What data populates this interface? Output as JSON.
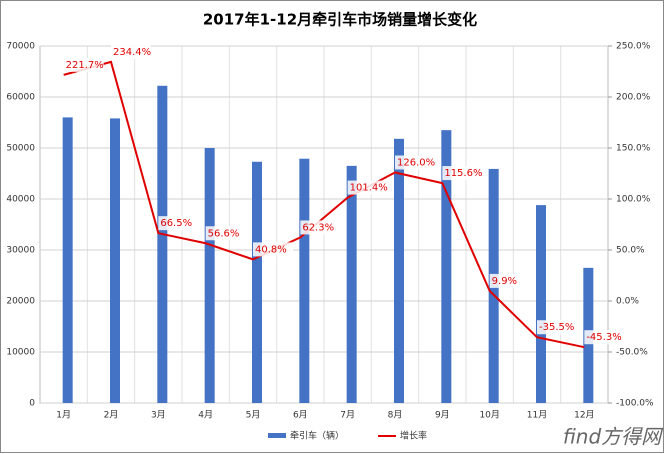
{
  "chart_data": {
    "type": "bar",
    "title": "2017年1-12月牵引车市场销量增长变化",
    "categories": [
      "1月",
      "2月",
      "3月",
      "4月",
      "5月",
      "6月",
      "7月",
      "8月",
      "9月",
      "10月",
      "11月",
      "12月"
    ],
    "series": [
      {
        "name": "牵引车（辆）",
        "type": "bar",
        "color": "#4472c4",
        "values": [
          56000,
          55800,
          62200,
          50000,
          47300,
          47900,
          46500,
          51800,
          53500,
          45900,
          38800,
          26500
        ]
      },
      {
        "name": "增长率",
        "type": "line",
        "color": "#e00000",
        "axis": "y2",
        "values": [
          221.7,
          234.4,
          66.5,
          56.6,
          40.8,
          62.3,
          101.4,
          126.0,
          115.6,
          9.9,
          -35.5,
          -45.3
        ],
        "value_labels": [
          "221.7%",
          "234.4%",
          "66.5%",
          "56.6%",
          "40.8%",
          "62.3%",
          "101.4%",
          "126.0%",
          "115.6%",
          "9.9%",
          "-35.5%",
          "-45.3%"
        ]
      }
    ],
    "ylim": [
      0,
      70000
    ],
    "yticks": [
      0,
      10000,
      20000,
      30000,
      40000,
      50000,
      60000,
      70000
    ],
    "y2lim": [
      -100,
      250
    ],
    "y2ticks": [
      {
        "value": -100,
        "label": "-100.0%"
      },
      {
        "value": -50,
        "label": "-50.0%"
      },
      {
        "value": 0,
        "label": "0.0%"
      },
      {
        "value": 50,
        "label": "50.0%"
      },
      {
        "value": 100,
        "label": "100.0%"
      },
      {
        "value": 150,
        "label": "150.0%"
      },
      {
        "value": 200,
        "label": "200.0%"
      },
      {
        "value": 250,
        "label": "250.0%"
      }
    ],
    "grid": true,
    "legend": "bottom",
    "logo": "find方得网"
  }
}
